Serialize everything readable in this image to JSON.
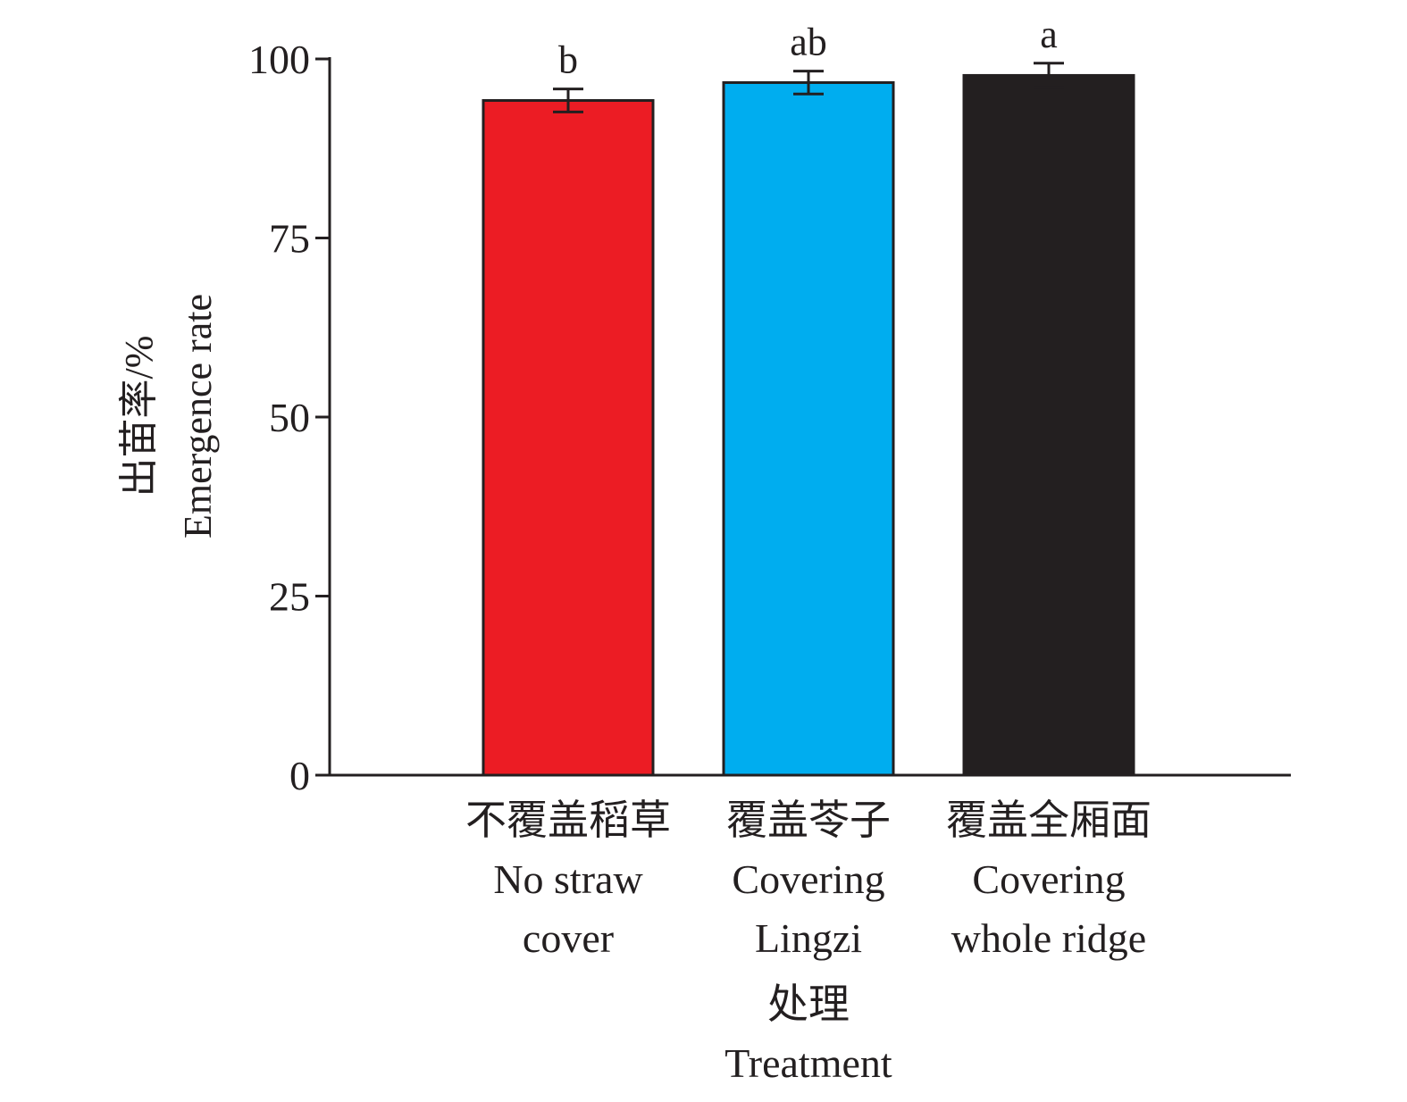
{
  "chart_data": {
    "type": "bar",
    "categories": [
      {
        "zh": "不覆盖稻草",
        "en": [
          "No straw",
          "cover"
        ]
      },
      {
        "zh": "覆盖苓子",
        "en": [
          "Covering",
          "Lingzi"
        ]
      },
      {
        "zh": "覆盖全厢面",
        "en": [
          "Covering",
          "whole ridge"
        ]
      }
    ],
    "values": [
      94.2,
      96.7,
      97.7
    ],
    "errors": [
      1.6,
      1.6,
      1.7
    ],
    "significance": [
      "b",
      "ab",
      "a"
    ],
    "colors": [
      "#ec1c24",
      "#00adef",
      "#231f20"
    ],
    "ylabel_zh": "出苗率/%",
    "ylabel_en": "Emergence rate",
    "xlabel_zh": "处理",
    "xlabel_en": "Treatment",
    "ylim": [
      0,
      100
    ],
    "yticks": [
      0,
      25,
      50,
      75,
      100
    ],
    "grid": false
  }
}
